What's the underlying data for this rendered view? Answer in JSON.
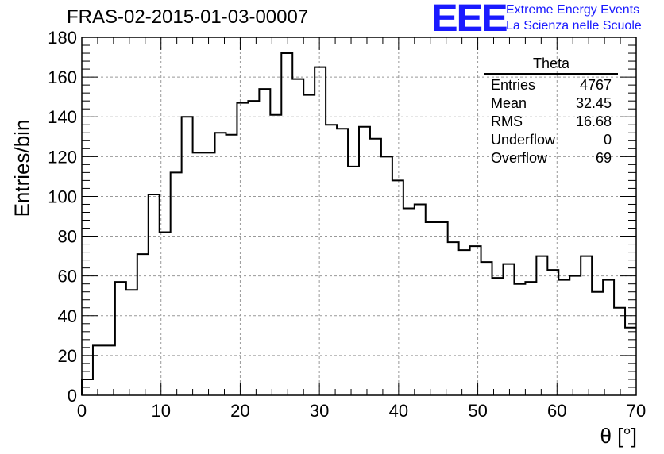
{
  "header": {
    "title": "FRAS-02-2015-01-03-00007"
  },
  "logo": {
    "mark": "EEE",
    "line1": "Extreme Energy Events",
    "line2": "La Scienza nelle Scuole",
    "color": "#1a1aff"
  },
  "stats_box": {
    "title": "Theta",
    "rows": [
      {
        "label": "Entries",
        "value": "4767"
      },
      {
        "label": "Mean",
        "value": "32.45"
      },
      {
        "label": "RMS",
        "value": "16.68"
      },
      {
        "label": "Underflow",
        "value": "0"
      },
      {
        "label": "Overflow",
        "value": "69"
      }
    ]
  },
  "chart_data": {
    "type": "histogram",
    "xlabel": "θ [°]",
    "ylabel": "Entries/bin",
    "xlim": [
      0,
      70
    ],
    "ylim": [
      0,
      180
    ],
    "grid": true,
    "bin_width": 1.4,
    "x_ticks": [
      0,
      10,
      20,
      30,
      40,
      50,
      60,
      70
    ],
    "y_ticks": [
      0,
      20,
      40,
      60,
      80,
      100,
      120,
      140,
      160,
      180
    ],
    "values": [
      8,
      25,
      25,
      57,
      53,
      71,
      101,
      82,
      112,
      140,
      122,
      122,
      132,
      131,
      147,
      148,
      154,
      141,
      172,
      159,
      151,
      165,
      136,
      134,
      115,
      135,
      129,
      120,
      108,
      94,
      96,
      87,
      87,
      77,
      73,
      75,
      67,
      59,
      66,
      56,
      57,
      70,
      63,
      58,
      60,
      70,
      52,
      58,
      44,
      34
    ]
  }
}
